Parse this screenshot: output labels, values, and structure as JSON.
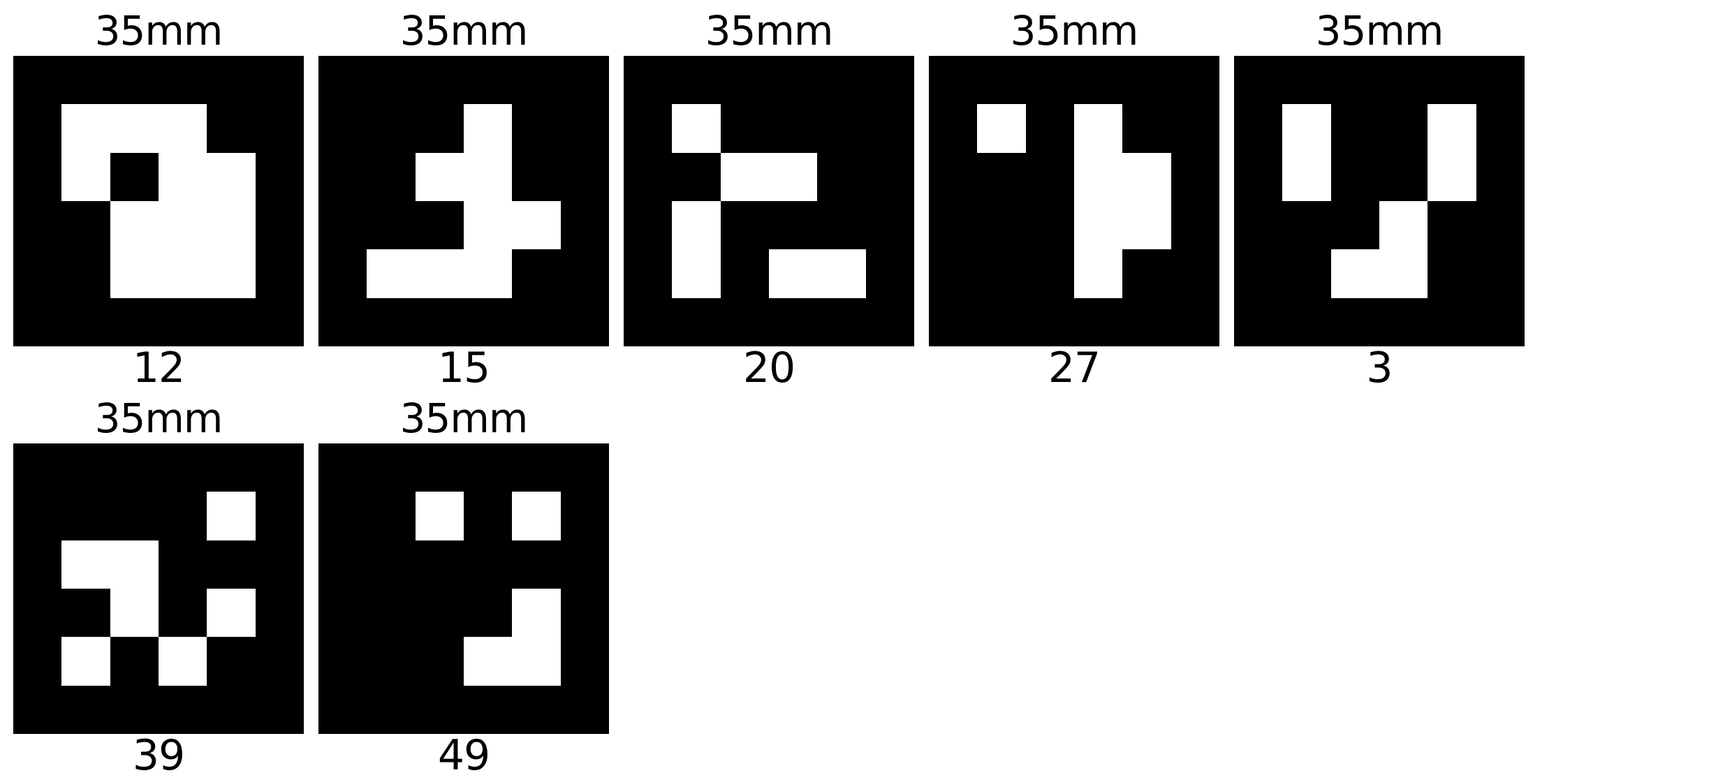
{
  "markers": [
    {
      "size_label": "35mm",
      "id_label": "12",
      "pattern": [
        "000000",
        "011100",
        "010110",
        "001110",
        "001110",
        "000000"
      ]
    },
    {
      "size_label": "35mm",
      "id_label": "15",
      "pattern": [
        "000000",
        "000100",
        "001100",
        "000110",
        "011100",
        "000000"
      ]
    },
    {
      "size_label": "35mm",
      "id_label": "20",
      "pattern": [
        "000000",
        "010000",
        "001100",
        "010000",
        "010110",
        "000000"
      ]
    },
    {
      "size_label": "35mm",
      "id_label": "27",
      "pattern": [
        "000000",
        "010100",
        "000110",
        "000110",
        "000100",
        "000000"
      ]
    },
    {
      "size_label": "35mm",
      "id_label": "3",
      "pattern": [
        "000000",
        "010010",
        "010010",
        "000100",
        "001100",
        "000000"
      ]
    },
    {
      "size_label": "35mm",
      "id_label": "39",
      "pattern": [
        "000000",
        "000010",
        "011000",
        "001010",
        "010100",
        "000000"
      ]
    },
    {
      "size_label": "35mm",
      "id_label": "49",
      "pattern": [
        "000000",
        "001010",
        "000000",
        "000010",
        "000110",
        "000000"
      ]
    }
  ],
  "colors": {
    "marker_black": "#000000",
    "marker_white": "#ffffff",
    "background": "#ffffff"
  }
}
